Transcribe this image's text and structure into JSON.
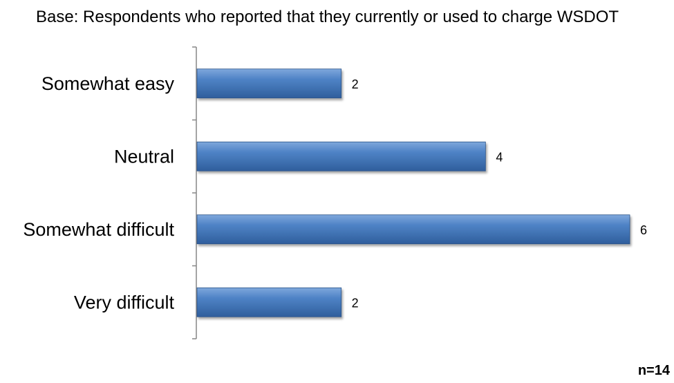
{
  "chart_data": {
    "type": "bar",
    "orientation": "horizontal",
    "subtitle": "Base: Respondents who reported that they currently or used to charge WSDOT",
    "categories": [
      "Somewhat easy",
      "Neutral",
      "Somewhat difficult",
      "Very difficult"
    ],
    "values": [
      2,
      4,
      6,
      2
    ],
    "value_labels": [
      "2",
      "4",
      "6",
      "2"
    ],
    "xlim": [
      0,
      6
    ],
    "grid": false,
    "legend": "none",
    "bar_color": "#4A7EBB",
    "note": "n=14"
  }
}
